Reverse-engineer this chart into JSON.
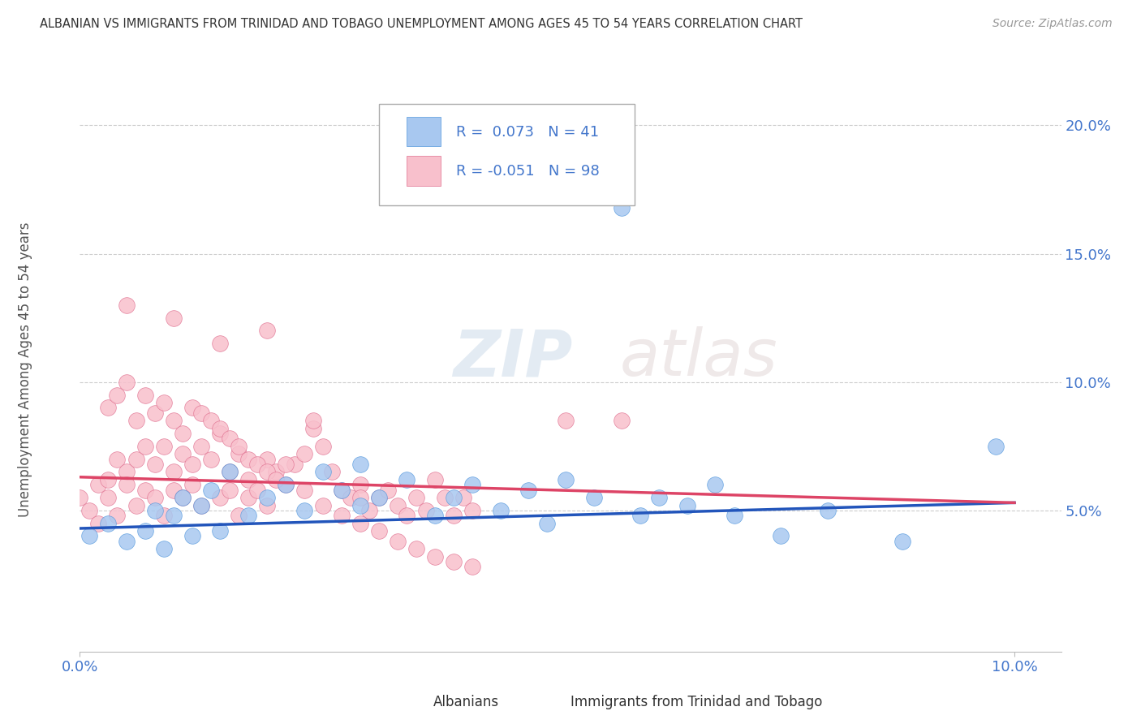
{
  "title": "ALBANIAN VS IMMIGRANTS FROM TRINIDAD AND TOBAGO UNEMPLOYMENT AMONG AGES 45 TO 54 YEARS CORRELATION CHART",
  "source": "Source: ZipAtlas.com",
  "ylabel": "Unemployment Among Ages 45 to 54 years",
  "xlim": [
    0.0,
    0.105
  ],
  "ylim": [
    -0.005,
    0.215
  ],
  "xticks": [
    0.0,
    0.1
  ],
  "xtick_labels": [
    "0.0%",
    "10.0%"
  ],
  "yticks": [
    0.0,
    0.05,
    0.1,
    0.15,
    0.2
  ],
  "ytick_labels": [
    "",
    "5.0%",
    "10.0%",
    "15.0%",
    "20.0%"
  ],
  "albanians_color": "#a8c8f0",
  "albanians_edge": "#5599dd",
  "trinidad_color": "#f8c0cc",
  "trinidad_edge": "#e07090",
  "trend_albanian_color": "#2255bb",
  "trend_trinidad_color": "#dd4466",
  "legend_R_albanian": "0.073",
  "legend_N_albanian": "41",
  "legend_R_trinidad": "-0.051",
  "legend_N_trinidad": "98",
  "watermark_zip": "ZIP",
  "watermark_atlas": "atlas",
  "background_color": "#ffffff",
  "grid_color": "#cccccc",
  "albanians_x": [
    0.001,
    0.003,
    0.005,
    0.007,
    0.008,
    0.009,
    0.01,
    0.011,
    0.012,
    0.013,
    0.014,
    0.015,
    0.016,
    0.018,
    0.02,
    0.022,
    0.024,
    0.026,
    0.028,
    0.03,
    0.03,
    0.032,
    0.035,
    0.038,
    0.04,
    0.042,
    0.045,
    0.048,
    0.05,
    0.052,
    0.055,
    0.058,
    0.06,
    0.062,
    0.065,
    0.068,
    0.07,
    0.075,
    0.08,
    0.088,
    0.098
  ],
  "albanians_y": [
    0.04,
    0.045,
    0.038,
    0.042,
    0.05,
    0.035,
    0.048,
    0.055,
    0.04,
    0.052,
    0.058,
    0.042,
    0.065,
    0.048,
    0.055,
    0.06,
    0.05,
    0.065,
    0.058,
    0.052,
    0.068,
    0.055,
    0.062,
    0.048,
    0.055,
    0.06,
    0.05,
    0.058,
    0.045,
    0.062,
    0.055,
    0.168,
    0.048,
    0.055,
    0.052,
    0.06,
    0.048,
    0.04,
    0.05,
    0.038,
    0.075
  ],
  "trinidad_x": [
    0.0,
    0.001,
    0.002,
    0.002,
    0.003,
    0.003,
    0.004,
    0.004,
    0.005,
    0.005,
    0.006,
    0.006,
    0.007,
    0.007,
    0.008,
    0.008,
    0.009,
    0.009,
    0.01,
    0.01,
    0.011,
    0.011,
    0.012,
    0.012,
    0.013,
    0.013,
    0.014,
    0.015,
    0.015,
    0.016,
    0.016,
    0.017,
    0.017,
    0.018,
    0.018,
    0.019,
    0.02,
    0.02,
    0.021,
    0.022,
    0.023,
    0.024,
    0.025,
    0.026,
    0.027,
    0.028,
    0.029,
    0.03,
    0.031,
    0.032,
    0.033,
    0.034,
    0.035,
    0.036,
    0.037,
    0.038,
    0.039,
    0.04,
    0.041,
    0.042,
    0.003,
    0.004,
    0.005,
    0.006,
    0.007,
    0.008,
    0.009,
    0.01,
    0.011,
    0.012,
    0.013,
    0.014,
    0.015,
    0.016,
    0.017,
    0.018,
    0.019,
    0.02,
    0.021,
    0.022,
    0.024,
    0.026,
    0.028,
    0.03,
    0.032,
    0.034,
    0.036,
    0.038,
    0.04,
    0.042,
    0.005,
    0.01,
    0.015,
    0.02,
    0.025,
    0.03,
    0.052,
    0.058
  ],
  "trinidad_y": [
    0.055,
    0.05,
    0.06,
    0.045,
    0.062,
    0.055,
    0.07,
    0.048,
    0.065,
    0.06,
    0.07,
    0.052,
    0.075,
    0.058,
    0.068,
    0.055,
    0.075,
    0.048,
    0.065,
    0.058,
    0.072,
    0.055,
    0.068,
    0.06,
    0.075,
    0.052,
    0.07,
    0.08,
    0.055,
    0.065,
    0.058,
    0.072,
    0.048,
    0.062,
    0.055,
    0.058,
    0.07,
    0.052,
    0.065,
    0.06,
    0.068,
    0.072,
    0.082,
    0.075,
    0.065,
    0.058,
    0.055,
    0.06,
    0.05,
    0.055,
    0.058,
    0.052,
    0.048,
    0.055,
    0.05,
    0.062,
    0.055,
    0.048,
    0.055,
    0.05,
    0.09,
    0.095,
    0.1,
    0.085,
    0.095,
    0.088,
    0.092,
    0.085,
    0.08,
    0.09,
    0.088,
    0.085,
    0.082,
    0.078,
    0.075,
    0.07,
    0.068,
    0.065,
    0.062,
    0.068,
    0.058,
    0.052,
    0.048,
    0.045,
    0.042,
    0.038,
    0.035,
    0.032,
    0.03,
    0.028,
    0.13,
    0.125,
    0.115,
    0.12,
    0.085,
    0.055,
    0.085,
    0.085
  ]
}
